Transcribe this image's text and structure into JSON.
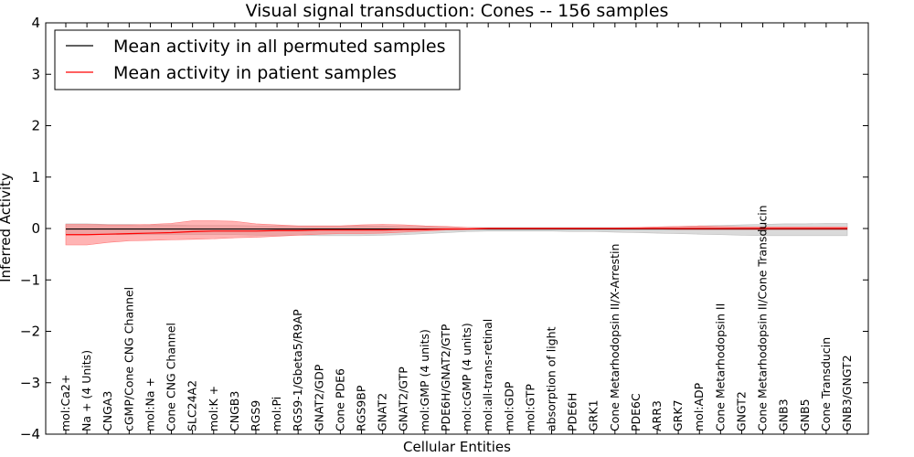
{
  "chart_data": {
    "type": "line",
    "title": "Visual signal transduction: Cones -- 156 samples",
    "xlabel": "Cellular Entities",
    "ylabel": "Inferred Activity",
    "ylim": [
      -4,
      4
    ],
    "yticks": [
      4,
      3,
      2,
      1,
      0,
      -1,
      -2,
      -3,
      -4
    ],
    "ytick_labels": [
      "4",
      "3",
      "2",
      "1",
      "0",
      "−1",
      "−2",
      "−3",
      "−4"
    ],
    "legend_position": "top-left",
    "categories": [
      "mol:Ca2+",
      "Na + (4 Units)",
      "CNGA3",
      "cGMP/Cone CNG Channel",
      "mol:Na +",
      "Cone CNG Channel",
      "SLC24A2",
      "mol:K +",
      "CNGB3",
      "RGS9",
      "mol:Pi",
      "RGS9-1/Gbeta5/R9AP",
      "GNAT2/GDP",
      "Cone PDE6",
      "RGS9BP",
      "GNAT2",
      "GNAT2/GTP",
      "mol:GMP (4 units)",
      "PDE6H/GNAT2/GTP",
      "mol:cGMP (4 units)",
      "mol:all-trans-retinal",
      "mol:GDP",
      "mol:GTP",
      "absorption of light",
      "PDE6H",
      "GRK1",
      "Cone Metarhodopsin II/X-Arrestin",
      "PDE6C",
      "ARR3",
      "GRK7",
      "mol:ADP",
      "Cone Metarhodopsin II",
      "GNGT2",
      "Cone Metarhodopsin II/Cone Transducin",
      "GNB3",
      "GNB5",
      "Cone Transducin",
      "GNB3/GNGT2"
    ],
    "series": [
      {
        "name": "Mean activity in all permuted samples",
        "color": "#000000",
        "band_color": "#bbbbbb",
        "values": [
          -0.01,
          -0.01,
          -0.01,
          -0.01,
          -0.01,
          -0.01,
          -0.01,
          -0.01,
          -0.01,
          -0.01,
          -0.01,
          -0.01,
          -0.01,
          -0.01,
          -0.01,
          -0.01,
          -0.01,
          -0.01,
          -0.01,
          -0.01,
          -0.01,
          -0.01,
          -0.01,
          -0.01,
          -0.01,
          -0.01,
          -0.01,
          -0.01,
          -0.01,
          -0.01,
          -0.01,
          -0.01,
          -0.01,
          -0.01,
          -0.01,
          -0.01,
          -0.01,
          -0.01
        ],
        "upper": [
          0.09,
          0.09,
          0.08,
          0.08,
          0.07,
          0.07,
          0.06,
          0.06,
          0.06,
          0.05,
          0.05,
          0.05,
          0.05,
          0.05,
          0.05,
          0.05,
          0.04,
          0.04,
          0.03,
          0.02,
          0.02,
          0.02,
          0.02,
          0.02,
          0.02,
          0.02,
          0.02,
          0.02,
          0.03,
          0.04,
          0.05,
          0.06,
          0.07,
          0.08,
          0.09,
          0.09,
          0.1,
          0.1
        ],
        "lower": [
          -0.12,
          -0.12,
          -0.12,
          -0.12,
          -0.12,
          -0.12,
          -0.12,
          -0.12,
          -0.12,
          -0.13,
          -0.13,
          -0.13,
          -0.14,
          -0.14,
          -0.14,
          -0.13,
          -0.12,
          -0.1,
          -0.08,
          -0.06,
          -0.05,
          -0.05,
          -0.05,
          -0.05,
          -0.06,
          -0.06,
          -0.07,
          -0.08,
          -0.09,
          -0.1,
          -0.11,
          -0.12,
          -0.13,
          -0.14,
          -0.14,
          -0.14,
          -0.14,
          -0.14
        ]
      },
      {
        "name": "Mean activity in patient samples",
        "color": "#ff0000",
        "band_color": "#ff7777",
        "values": [
          -0.12,
          -0.12,
          -0.11,
          -0.1,
          -0.09,
          -0.08,
          -0.06,
          -0.05,
          -0.05,
          -0.05,
          -0.04,
          -0.04,
          -0.03,
          -0.03,
          -0.03,
          -0.03,
          -0.02,
          -0.02,
          -0.01,
          -0.01,
          0.0,
          0.0,
          0.0,
          0.0,
          0.0,
          0.0,
          0.0,
          0.0,
          0.0,
          0.0,
          0.0,
          0.0,
          0.0,
          0.0,
          0.0,
          0.0,
          0.0,
          0.0
        ],
        "upper": [
          0.08,
          0.08,
          0.07,
          0.07,
          0.08,
          0.1,
          0.15,
          0.15,
          0.14,
          0.09,
          0.07,
          0.05,
          0.05,
          0.05,
          0.07,
          0.08,
          0.07,
          0.05,
          0.04,
          0.02,
          0.01,
          0.01,
          0.01,
          0.01,
          0.01,
          0.01,
          0.01,
          0.02,
          0.03,
          0.04,
          0.05,
          0.04,
          0.03,
          0.03,
          0.03,
          0.03,
          0.03,
          0.03
        ],
        "lower": [
          -0.32,
          -0.32,
          -0.27,
          -0.24,
          -0.23,
          -0.22,
          -0.21,
          -0.2,
          -0.18,
          -0.17,
          -0.15,
          -0.13,
          -0.11,
          -0.1,
          -0.1,
          -0.09,
          -0.07,
          -0.05,
          -0.03,
          -0.02,
          -0.01,
          -0.01,
          -0.01,
          -0.01,
          -0.01,
          -0.01,
          -0.01,
          -0.01,
          -0.01,
          -0.02,
          -0.02,
          -0.02,
          -0.02,
          -0.02,
          -0.02,
          -0.02,
          -0.02,
          -0.02
        ]
      }
    ]
  }
}
